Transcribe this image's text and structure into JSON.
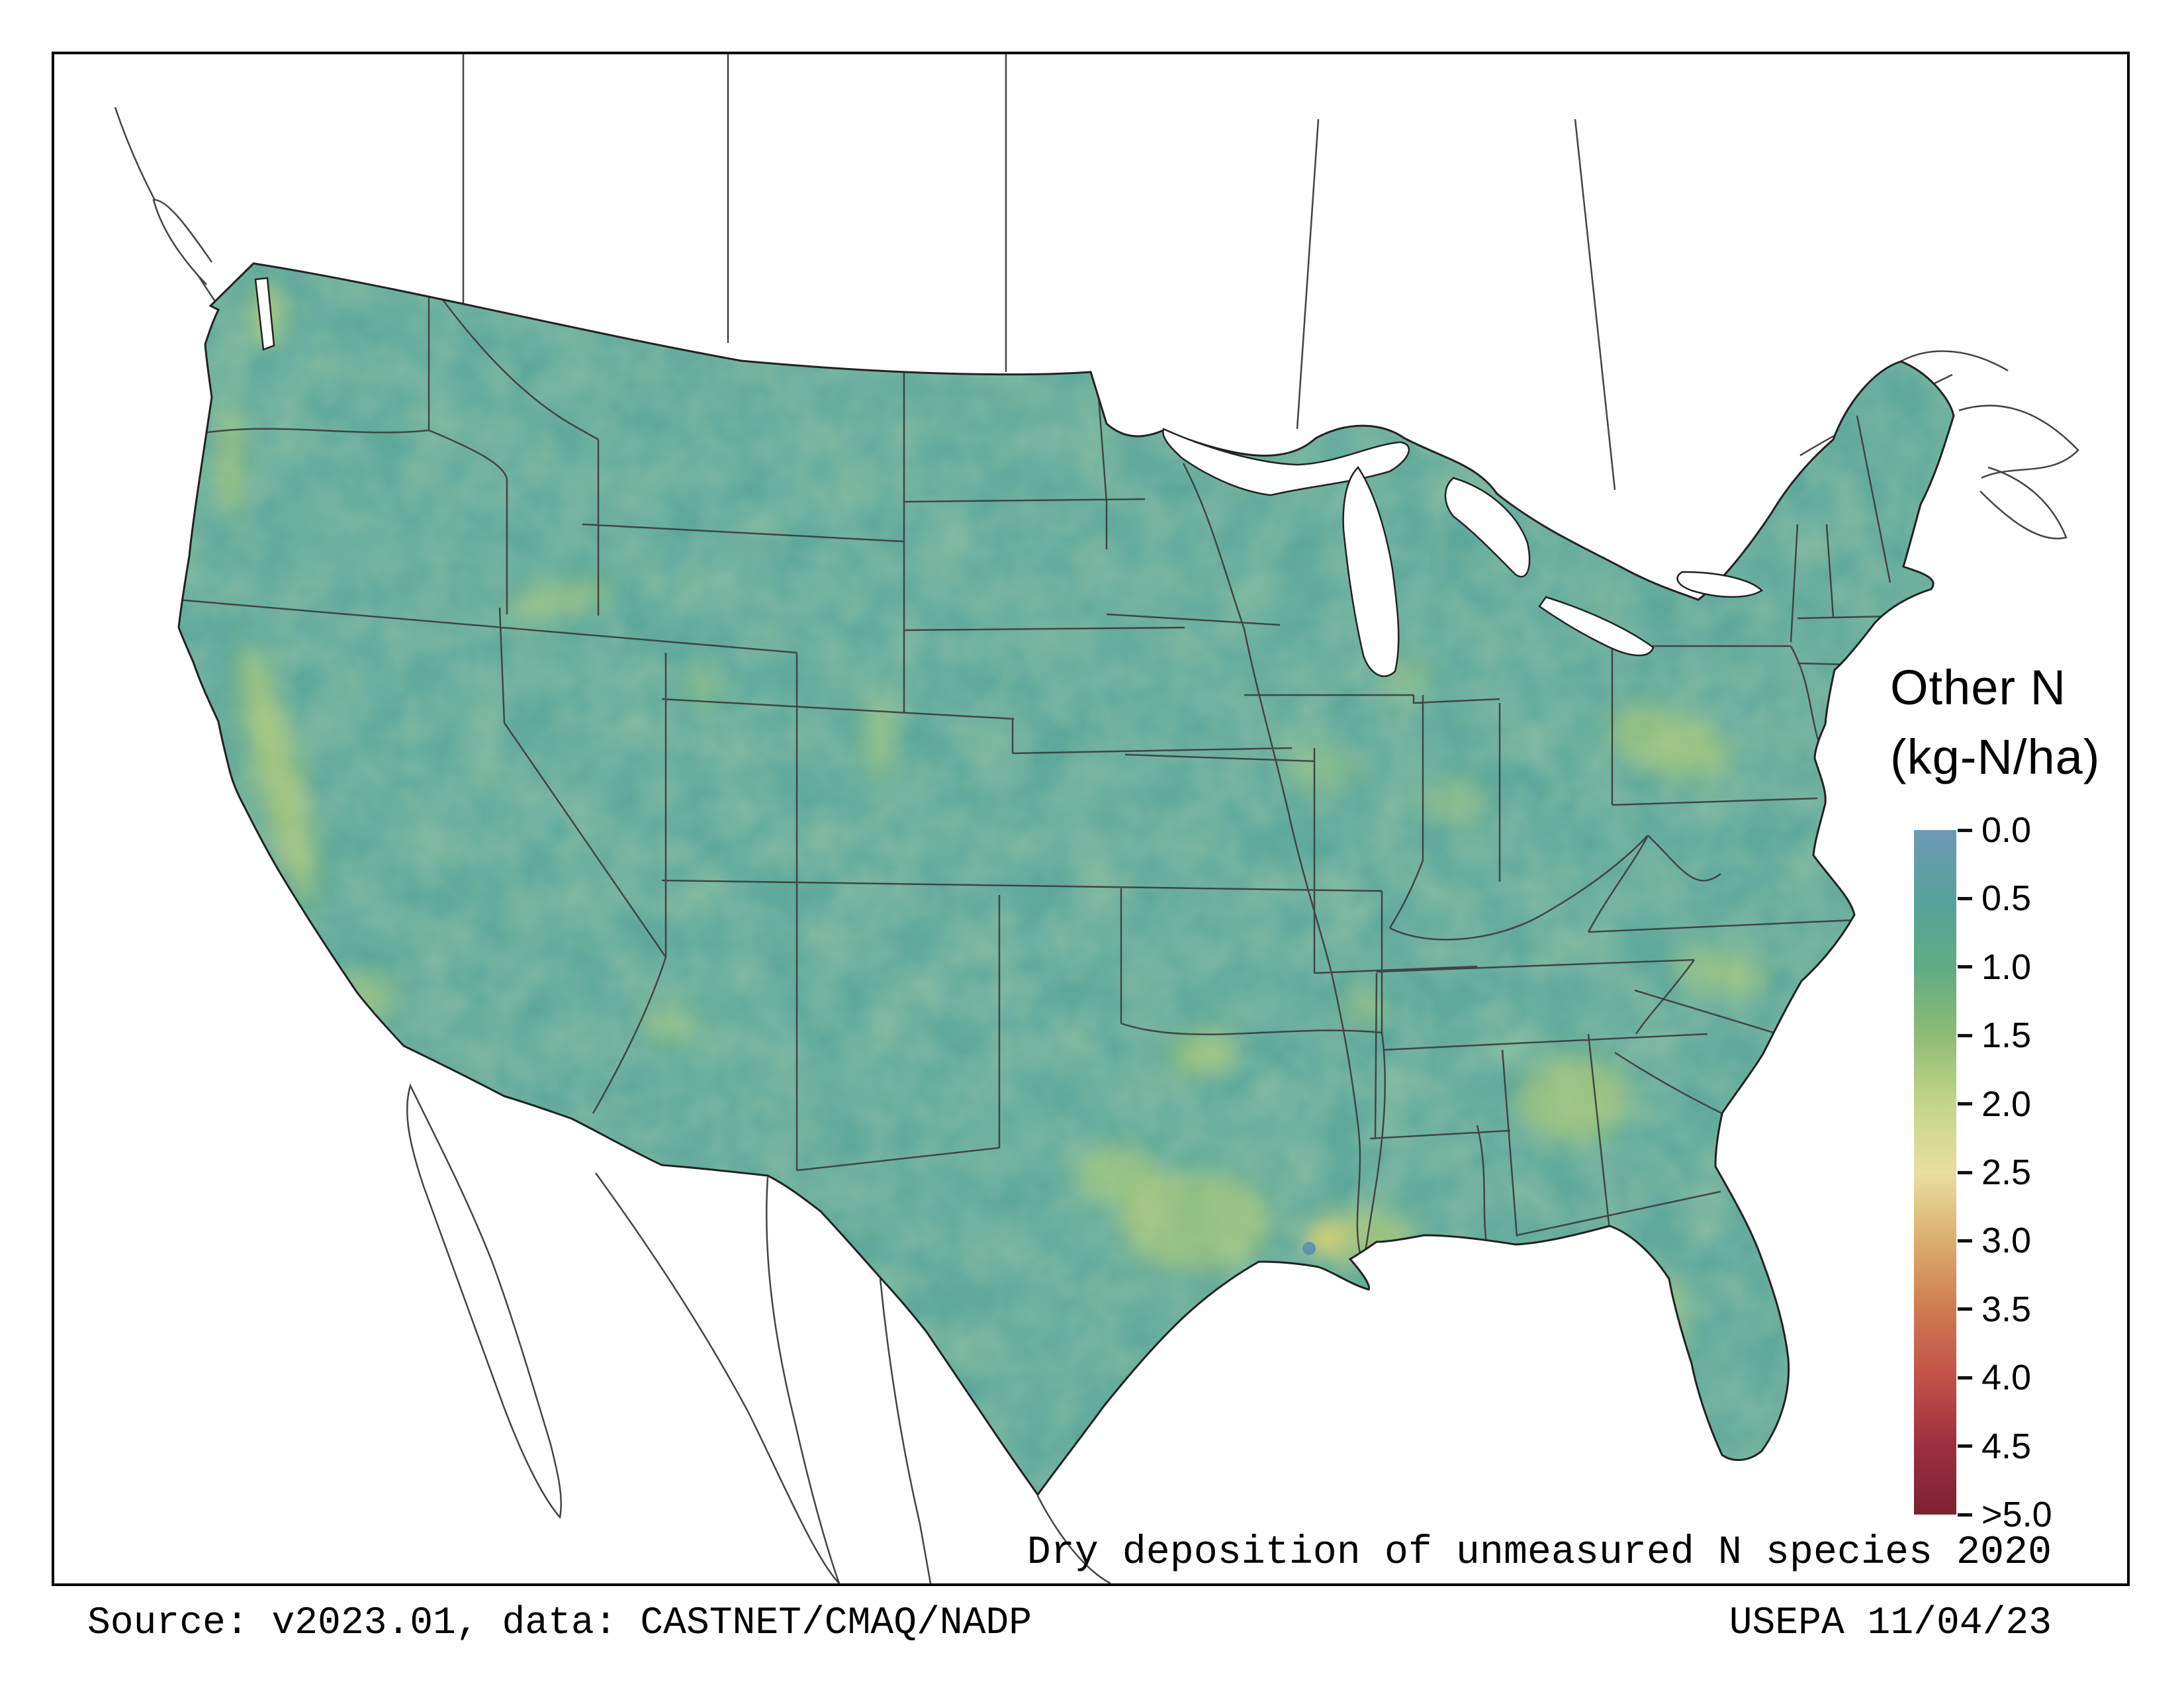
{
  "title": "Dry deposition of unmeasured N species 2020",
  "legend": {
    "title_line1": "Other N",
    "title_line2": "(kg-N/ha)",
    "ticks": [
      "0.0",
      "0.5",
      "1.0",
      "1.5",
      "2.0",
      "2.5",
      "3.0",
      "3.5",
      "4.0",
      "4.5",
      ">5.0"
    ],
    "stops": [
      "#6e99b4",
      "#57a29b",
      "#5fab86",
      "#8fbc74",
      "#c3d589",
      "#e8dfa2",
      "#dcae6b",
      "#cf7b52",
      "#c05147",
      "#9c2f3f",
      "#7c2233"
    ]
  },
  "footer": {
    "source": "Source: v2023.01, data: CASTNET/CMAQ/NADP",
    "agency": "USEPA 11/04/23"
  },
  "map": {
    "name": "Contiguous United States gridded deposition map",
    "base_color": "#5da89a",
    "hotspot_color": "#c8d66e",
    "outline_color": "#222222",
    "state_line_color": "#3a3a3a",
    "background": "#ffffff"
  },
  "chart_data": {
    "type": "heatmap",
    "title": "Dry deposition of unmeasured N species 2020",
    "legend_title": "Other N (kg-N/ha)",
    "scale_ticks": [
      0.0,
      0.5,
      1.0,
      1.5,
      2.0,
      2.5,
      3.0,
      3.5,
      4.0,
      4.5,
      5.0
    ],
    "scale_tick_labels": [
      "0.0",
      "0.5",
      "1.0",
      "1.5",
      "2.0",
      "2.5",
      "3.0",
      "3.5",
      "4.0",
      "4.5",
      ">5.0"
    ],
    "scale_colors": [
      "#6e99b4",
      "#57a29b",
      "#5fab86",
      "#8fbc74",
      "#c3d589",
      "#e8dfa2",
      "#dcae6b",
      "#cf7b52",
      "#c05147",
      "#9c2f3f",
      "#7c2233"
    ],
    "legend_position": "right",
    "value_summary": "Most of CONUS ~0.5-1.5 kg-N/ha (teal-green); localized higher values ~1.5-2.5 (yellow-green) in California Central Valley, Puget Sound, Willamette Valley, east Texas, Louisiana Gulf coast, northern Georgia/Atlanta, Carolina Piedmont, Pennsylvania, Midwest agricultural patches"
  }
}
